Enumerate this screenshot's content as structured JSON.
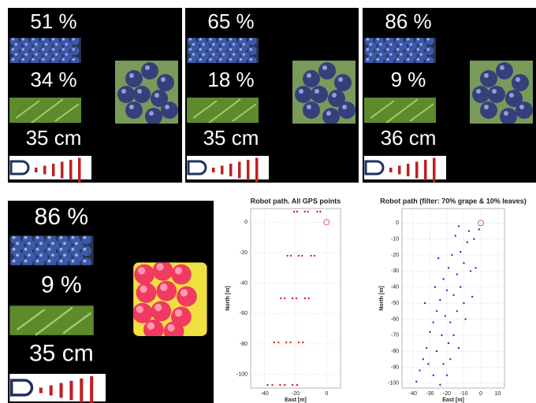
{
  "panels": [
    {
      "grape": "51 %",
      "leaves": "34 %",
      "distance": "35 cm"
    },
    {
      "grape": "65 %",
      "leaves": "18 %",
      "distance": "35 cm"
    },
    {
      "grape": "86 %",
      "leaves": "9 %",
      "distance": "36 cm"
    },
    {
      "grape": "86 %",
      "leaves": "9 %",
      "distance": "35 cm"
    }
  ],
  "chart_data": [
    {
      "type": "scatter",
      "title": "Robot path. All GPS points",
      "x_label": "East [m]",
      "y_label": "North [m]",
      "color": "#d02020",
      "x": [
        -38,
        -33.8,
        -29.5,
        -25.3,
        -21,
        -19,
        -23,
        -27,
        -31,
        -35,
        -30,
        -26,
        -22,
        -18,
        -14,
        -12,
        -15.8,
        -19.5,
        -23.3,
        -27,
        -22,
        -18,
        -14,
        -10,
        -6,
        -4,
        -7.8,
        -11.5,
        -15.3,
        -19
      ],
      "y": [
        -107,
        -79,
        -50,
        -22,
        7,
        7,
        -22,
        -50,
        -79,
        -107,
        -107,
        -79,
        -50,
        -22,
        7,
        7,
        -22,
        -50,
        -79,
        -107,
        -107,
        -79,
        -50,
        -22,
        7,
        7,
        -22,
        -50,
        -79,
        -107
      ],
      "marker": {
        "x": 0,
        "y": 0,
        "color": "#d04040"
      },
      "xlim": [
        -49,
        9
      ],
      "ylim": [
        -109,
        9
      ],
      "xticks": [
        -40,
        -20,
        0
      ],
      "yticks": [
        0,
        -20,
        -40,
        -60,
        -80,
        -100
      ],
      "grid": true
    },
    {
      "type": "scatter",
      "title": "Robot path (filter: 70% grape & 10% leaves)",
      "x_label": "East [m]",
      "y_label": "North [m]",
      "color": "#2030d0",
      "x": [
        -1,
        -7,
        -4,
        -8,
        -13,
        -15,
        -12,
        -10,
        -17,
        -19,
        -14,
        -22,
        -20,
        -24,
        -16,
        -12,
        -26,
        -21,
        -18,
        -28,
        -30,
        -23,
        -19,
        -32,
        -26,
        -34,
        -22,
        -20,
        -36,
        -28,
        -38,
        -24,
        -10,
        -14,
        -6,
        -3,
        -9,
        -16,
        -25,
        -27,
        -33,
        -18,
        -13,
        -5,
        -31
      ],
      "y": [
        -4,
        -5,
        -10,
        -12,
        -2,
        -8,
        -18,
        -25,
        -20,
        -28,
        -32,
        -35,
        -42,
        -48,
        -45,
        -40,
        -55,
        -58,
        -62,
        -62,
        -68,
        -70,
        -75,
        -78,
        -80,
        -85,
        -88,
        -95,
        -92,
        -95,
        -99,
        -101,
        -50,
        -55,
        -30,
        -28,
        -60,
        -70,
        -22,
        -40,
        -50,
        -85,
        -78,
        -46,
        -88
      ],
      "marker": {
        "x": 0,
        "y": 0,
        "color": "#d04040"
      },
      "xlim": [
        -46.5,
        14
      ],
      "ylim": [
        -103,
        9
      ],
      "xticks": [
        -40,
        -30,
        -20,
        -10,
        0,
        10
      ],
      "yticks": [
        0,
        -10,
        -20,
        -30,
        -40,
        -50,
        -60,
        -70,
        -80,
        -90,
        -100
      ],
      "grid": true
    }
  ]
}
